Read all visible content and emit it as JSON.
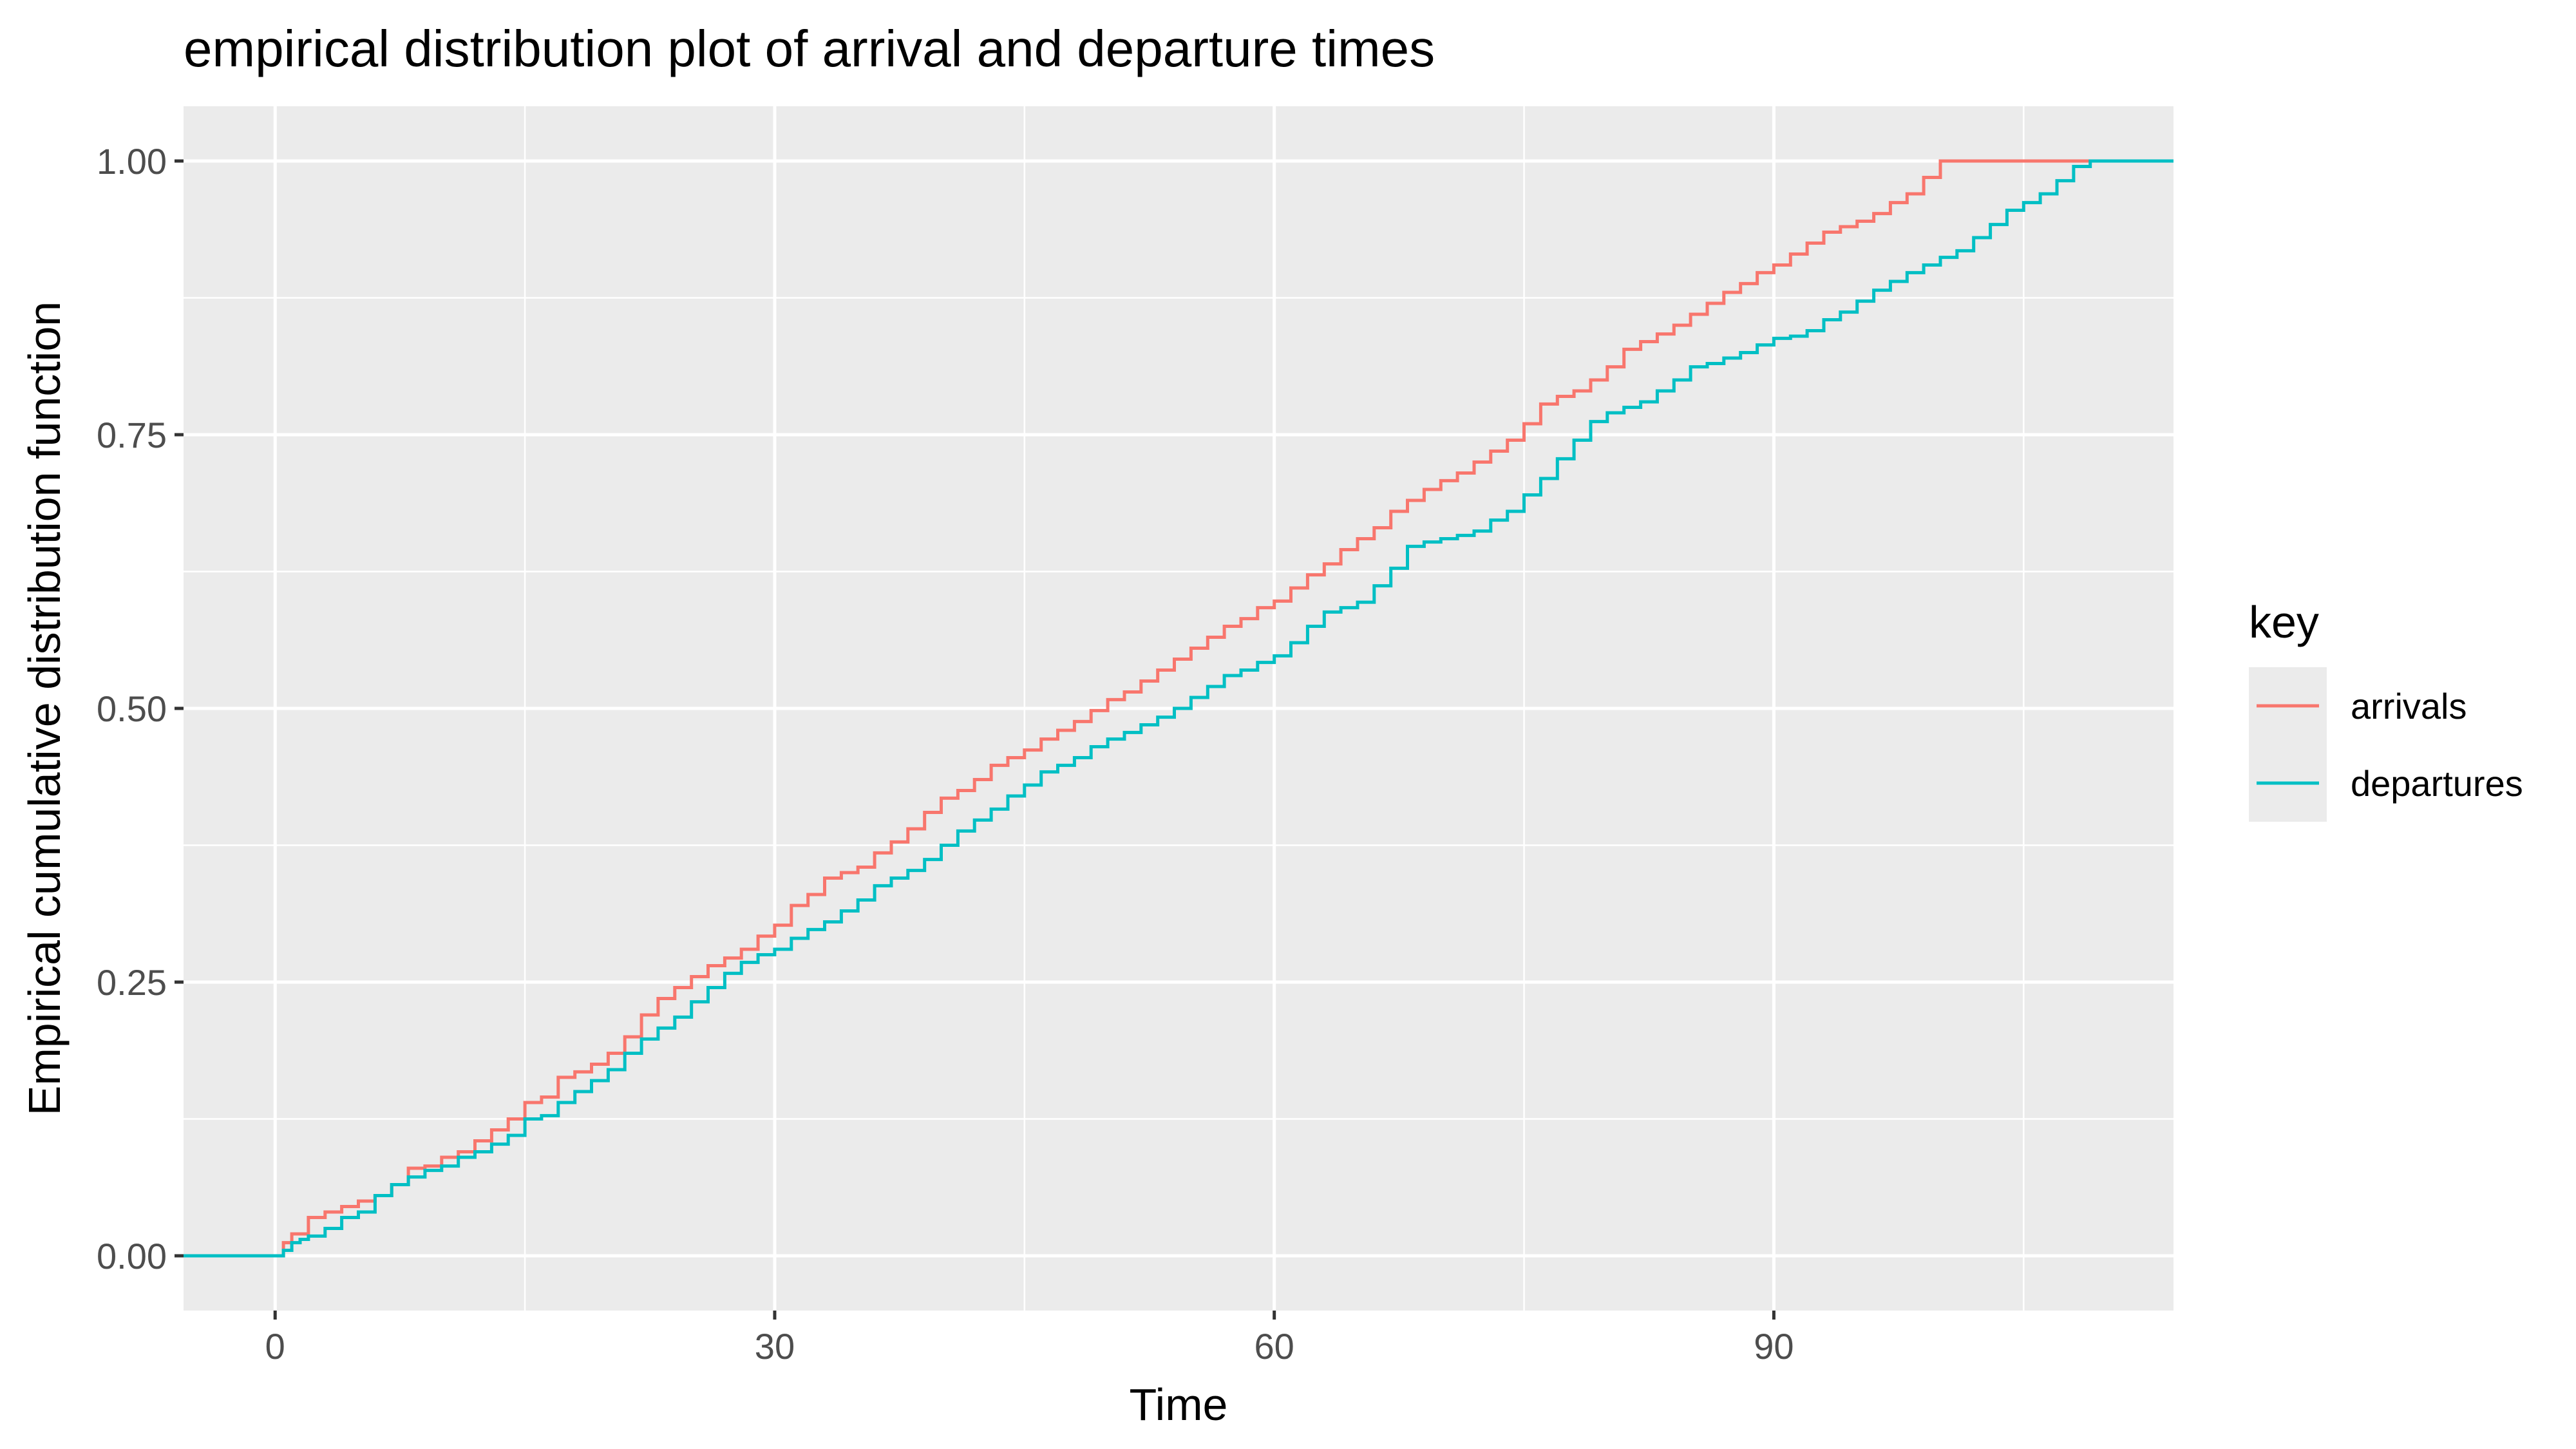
{
  "chart_data": {
    "type": "line",
    "title": "empirical distribution plot of arrival and departure times",
    "xlabel": "Time",
    "ylabel": "Empirical cumulative distribution function",
    "xlim": [
      -5.5,
      114
    ],
    "ylim": [
      -0.05,
      1.05
    ],
    "x_ticks": [
      {
        "value": 0,
        "label": "0"
      },
      {
        "value": 30,
        "label": "30"
      },
      {
        "value": 60,
        "label": "60"
      },
      {
        "value": 90,
        "label": "90"
      }
    ],
    "x_minor": [
      15,
      45,
      75,
      105
    ],
    "y_ticks": [
      {
        "value": 0,
        "label": "0.00"
      },
      {
        "value": 0.25,
        "label": "0.25"
      },
      {
        "value": 0.5,
        "label": "0.50"
      },
      {
        "value": 0.75,
        "label": "0.75"
      },
      {
        "value": 1,
        "label": "1.00"
      }
    ],
    "y_minor": [
      0.125,
      0.375,
      0.625,
      0.875
    ],
    "grid": true,
    "legend": {
      "title": "key",
      "position": "right"
    },
    "series": [
      {
        "name": "arrivals",
        "color": "#F8766D",
        "x": [
          -5.5,
          0,
          0.5,
          1,
          2,
          3,
          4,
          5,
          6,
          7,
          8,
          9,
          10,
          11,
          12,
          13,
          14,
          15,
          16,
          17,
          18,
          19,
          20,
          21,
          22,
          23,
          24,
          25,
          26,
          27,
          28,
          29,
          30,
          31,
          32,
          33,
          34,
          35,
          36,
          37,
          38,
          39,
          40,
          41,
          42,
          43,
          44,
          45,
          46,
          47,
          48,
          49,
          50,
          51,
          52,
          53,
          54,
          55,
          56,
          57,
          58,
          59,
          60,
          61,
          62,
          63,
          64,
          65,
          66,
          67,
          68,
          69,
          70,
          71,
          72,
          73,
          74,
          75,
          76,
          77,
          78,
          79,
          80,
          81,
          82,
          83,
          84,
          85,
          86,
          87,
          88,
          89,
          90,
          91,
          92,
          93,
          94,
          95,
          96,
          97,
          98,
          99,
          100,
          101,
          105,
          110,
          114
        ],
        "values": [
          0,
          0,
          0.012,
          0.02,
          0.035,
          0.04,
          0.045,
          0.05,
          0.055,
          0.065,
          0.08,
          0.082,
          0.09,
          0.095,
          0.105,
          0.115,
          0.125,
          0.14,
          0.145,
          0.163,
          0.168,
          0.175,
          0.185,
          0.2,
          0.22,
          0.235,
          0.245,
          0.255,
          0.265,
          0.272,
          0.28,
          0.292,
          0.302,
          0.32,
          0.33,
          0.345,
          0.35,
          0.355,
          0.368,
          0.378,
          0.39,
          0.405,
          0.418,
          0.425,
          0.435,
          0.448,
          0.455,
          0.462,
          0.472,
          0.48,
          0.488,
          0.498,
          0.508,
          0.515,
          0.525,
          0.535,
          0.545,
          0.555,
          0.565,
          0.575,
          0.582,
          0.592,
          0.598,
          0.61,
          0.622,
          0.632,
          0.645,
          0.655,
          0.665,
          0.68,
          0.69,
          0.7,
          0.708,
          0.715,
          0.725,
          0.735,
          0.745,
          0.76,
          0.778,
          0.785,
          0.79,
          0.8,
          0.812,
          0.828,
          0.835,
          0.842,
          0.85,
          0.86,
          0.87,
          0.88,
          0.888,
          0.898,
          0.905,
          0.915,
          0.925,
          0.935,
          0.94,
          0.945,
          0.952,
          0.962,
          0.97,
          0.985,
          1,
          1,
          1,
          1,
          1
        ]
      },
      {
        "name": "departures",
        "color": "#00BFC4",
        "x": [
          -5.5,
          0,
          0.5,
          1,
          1.5,
          2,
          3,
          4,
          5,
          6,
          7,
          8,
          9,
          10,
          11,
          12,
          13,
          14,
          15,
          16,
          17,
          18,
          19,
          20,
          21,
          22,
          23,
          24,
          25,
          26,
          27,
          28,
          29,
          30,
          31,
          32,
          33,
          34,
          35,
          36,
          37,
          38,
          39,
          40,
          41,
          42,
          43,
          44,
          45,
          46,
          47,
          48,
          49,
          50,
          51,
          52,
          53,
          54,
          55,
          56,
          57,
          58,
          59,
          60,
          61,
          62,
          63,
          64,
          65,
          66,
          67,
          68,
          69,
          70,
          71,
          72,
          73,
          74,
          75,
          76,
          77,
          78,
          79,
          80,
          81,
          82,
          83,
          84,
          85,
          86,
          87,
          88,
          89,
          90,
          91,
          92,
          93,
          94,
          95,
          96,
          97,
          98,
          99,
          100,
          101,
          102,
          103,
          104,
          105,
          106,
          107,
          108,
          109,
          114
        ],
        "values": [
          0,
          0,
          0.005,
          0.012,
          0.015,
          0.018,
          0.025,
          0.035,
          0.04,
          0.055,
          0.065,
          0.072,
          0.078,
          0.082,
          0.09,
          0.095,
          0.102,
          0.11,
          0.125,
          0.128,
          0.14,
          0.15,
          0.16,
          0.17,
          0.185,
          0.198,
          0.208,
          0.218,
          0.232,
          0.245,
          0.258,
          0.268,
          0.275,
          0.28,
          0.29,
          0.298,
          0.305,
          0.315,
          0.325,
          0.338,
          0.345,
          0.352,
          0.362,
          0.375,
          0.388,
          0.398,
          0.408,
          0.42,
          0.43,
          0.442,
          0.448,
          0.455,
          0.465,
          0.472,
          0.478,
          0.485,
          0.492,
          0.5,
          0.51,
          0.52,
          0.53,
          0.535,
          0.542,
          0.548,
          0.56,
          0.575,
          0.588,
          0.592,
          0.597,
          0.612,
          0.628,
          0.648,
          0.652,
          0.655,
          0.658,
          0.662,
          0.672,
          0.68,
          0.695,
          0.71,
          0.728,
          0.745,
          0.762,
          0.77,
          0.775,
          0.78,
          0.79,
          0.8,
          0.812,
          0.815,
          0.82,
          0.825,
          0.832,
          0.838,
          0.84,
          0.845,
          0.855,
          0.862,
          0.872,
          0.882,
          0.89,
          0.898,
          0.905,
          0.912,
          0.918,
          0.93,
          0.942,
          0.955,
          0.962,
          0.97,
          0.982,
          0.995,
          1,
          1
        ]
      }
    ]
  }
}
